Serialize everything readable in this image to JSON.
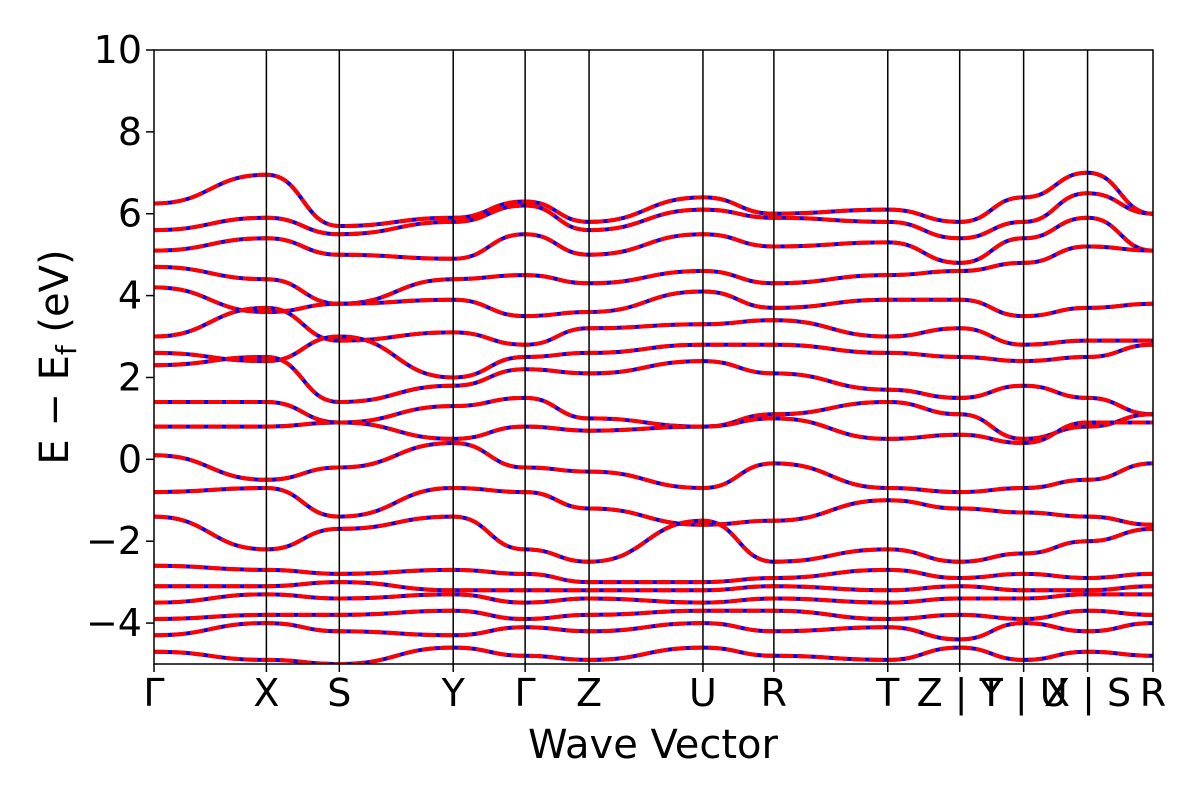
{
  "chart_data": {
    "type": "line",
    "title": "",
    "xlabel": "Wave Vector",
    "ylabel": "E − E",
    "ylabel_sub": "f",
    "ylabel_unit": " (eV)",
    "ylim": [
      -5,
      10
    ],
    "yticks": [
      -4,
      -2,
      0,
      2,
      4,
      6,
      8,
      10
    ],
    "ytick_labels": [
      "−4",
      "−2",
      "0",
      "2",
      "4",
      "6",
      "8",
      "10"
    ],
    "x_range": [
      0,
      1
    ],
    "kpoints": [
      {
        "x": 0.0,
        "label": "Γ"
      },
      {
        "x": 0.1125,
        "label": "X"
      },
      {
        "x": 0.1855,
        "label": "S"
      },
      {
        "x": 0.2995,
        "label": "Y"
      },
      {
        "x": 0.3715,
        "label": "Γ"
      },
      {
        "x": 0.4355,
        "label": "Z"
      },
      {
        "x": 0.5495,
        "label": "U"
      },
      {
        "x": 0.6205,
        "label": "R"
      },
      {
        "x": 0.7345,
        "label": "T"
      },
      {
        "x": 0.8065,
        "label": "Z | Y"
      },
      {
        "x": 0.8705,
        "label": "T | U"
      },
      {
        "x": 0.9345,
        "label": "X | S"
      },
      {
        "x": 1.0,
        "label": "R"
      }
    ],
    "series_styles": [
      {
        "color": "#0000ff",
        "style": "solid"
      },
      {
        "color": "#ff0000",
        "style": "dashed"
      }
    ],
    "grid": false,
    "legend": "none",
    "bands": [
      {
        "x": [
          0.0,
          0.1125,
          0.1855,
          0.2995,
          0.3715,
          0.4355,
          0.5495,
          0.6205,
          0.7345,
          0.8065,
          0.8705,
          0.9345,
          1.0
        ],
        "y": [
          6.25,
          6.95,
          5.7,
          5.9,
          6.3,
          5.8,
          6.4,
          6.0,
          6.1,
          5.8,
          6.4,
          7.0,
          6.0
        ]
      },
      {
        "x": [
          0.0,
          0.1125,
          0.1855,
          0.2995,
          0.3715,
          0.4355,
          0.5495,
          0.6205,
          0.7345,
          0.8065,
          0.8705,
          0.9345,
          1.0
        ],
        "y": [
          5.6,
          5.9,
          5.5,
          5.8,
          6.2,
          5.6,
          6.1,
          5.9,
          5.8,
          5.4,
          5.8,
          6.5,
          6.0
        ]
      },
      {
        "x": [
          0.0,
          0.1125,
          0.1855,
          0.2995,
          0.3715,
          0.4355,
          0.5495,
          0.6205,
          0.7345,
          0.8065,
          0.8705,
          0.9345,
          1.0
        ],
        "y": [
          5.1,
          5.4,
          5.0,
          4.9,
          5.5,
          5.0,
          5.5,
          5.2,
          5.3,
          4.8,
          5.4,
          5.9,
          5.1
        ]
      },
      {
        "x": [
          0.0,
          0.1125,
          0.1855,
          0.2995,
          0.3715,
          0.4355,
          0.5495,
          0.6205,
          0.7345,
          0.8065,
          0.8705,
          0.9345,
          1.0
        ],
        "y": [
          4.7,
          4.4,
          3.8,
          4.4,
          4.5,
          4.3,
          4.6,
          4.3,
          4.5,
          4.6,
          4.8,
          5.2,
          5.1
        ]
      },
      {
        "x": [
          0.0,
          0.1125,
          0.1855,
          0.2995,
          0.3715,
          0.4355,
          0.5495,
          0.6205,
          0.7345,
          0.8065,
          0.8705,
          0.9345,
          1.0
        ],
        "y": [
          4.2,
          3.6,
          3.8,
          3.9,
          3.5,
          3.6,
          4.1,
          3.7,
          3.9,
          3.9,
          3.5,
          3.7,
          3.8
        ]
      },
      {
        "x": [
          0.0,
          0.1125,
          0.1855,
          0.2995,
          0.3715,
          0.4355,
          0.5495,
          0.6205,
          0.7345,
          0.8065,
          0.8705,
          0.9345,
          1.0
        ],
        "y": [
          3.0,
          3.7,
          2.9,
          3.1,
          2.8,
          3.2,
          3.3,
          3.4,
          3.0,
          3.2,
          2.8,
          2.9,
          2.9
        ]
      },
      {
        "x": [
          0.0,
          0.1125,
          0.1855,
          0.2995,
          0.3715,
          0.4355,
          0.5495,
          0.6205,
          0.7345,
          0.8065,
          0.8705,
          0.9345,
          1.0
        ],
        "y": [
          2.6,
          2.4,
          3.0,
          2.0,
          2.5,
          2.6,
          2.8,
          2.8,
          2.6,
          2.5,
          2.4,
          2.5,
          2.8
        ]
      },
      {
        "x": [
          0.0,
          0.1125,
          0.1855,
          0.2995,
          0.3715,
          0.4355,
          0.5495,
          0.6205,
          0.7345,
          0.8065,
          0.8705,
          0.9345,
          1.0
        ],
        "y": [
          2.3,
          2.5,
          1.4,
          1.8,
          2.2,
          2.1,
          2.4,
          2.1,
          1.7,
          1.5,
          1.8,
          1.5,
          1.1
        ]
      },
      {
        "x": [
          0.0,
          0.1125,
          0.1855,
          0.2995,
          0.3715,
          0.4355,
          0.5495,
          0.6205,
          0.7345,
          0.8065,
          0.8705,
          0.9345,
          1.0
        ],
        "y": [
          1.4,
          1.4,
          0.9,
          1.3,
          1.5,
          1.0,
          0.8,
          1.1,
          1.4,
          1.1,
          0.5,
          0.8,
          1.1
        ]
      },
      {
        "x": [
          0.0,
          0.1125,
          0.1855,
          0.2995,
          0.3715,
          0.4355,
          0.5495,
          0.6205,
          0.7345,
          0.8065,
          0.8705,
          0.9345,
          1.0
        ],
        "y": [
          0.8,
          0.8,
          0.9,
          0.5,
          0.8,
          0.7,
          0.8,
          1.0,
          0.5,
          0.6,
          0.4,
          0.9,
          0.9
        ]
      },
      {
        "x": [
          0.0,
          0.1125,
          0.1855,
          0.2995,
          0.3715,
          0.4355,
          0.5495,
          0.6205,
          0.7345,
          0.8065,
          0.8705,
          0.9345,
          1.0
        ],
        "y": [
          0.1,
          -0.5,
          -0.2,
          0.4,
          -0.2,
          -0.3,
          -0.7,
          -0.1,
          -0.7,
          -0.8,
          -0.7,
          -0.5,
          -0.1
        ]
      },
      {
        "x": [
          0.0,
          0.1125,
          0.1855,
          0.2995,
          0.3715,
          0.4355,
          0.5495,
          0.6205,
          0.7345,
          0.8065,
          0.8705,
          0.9345,
          1.0
        ],
        "y": [
          -0.8,
          -0.7,
          -1.4,
          -0.7,
          -0.8,
          -1.2,
          -1.6,
          -1.5,
          -1.0,
          -1.2,
          -1.3,
          -1.4,
          -1.6
        ]
      },
      {
        "x": [
          0.0,
          0.1125,
          0.1855,
          0.2995,
          0.3715,
          0.4355,
          0.5495,
          0.6205,
          0.7345,
          0.8065,
          0.8705,
          0.9345,
          1.0
        ],
        "y": [
          -1.4,
          -2.2,
          -1.7,
          -1.4,
          -2.2,
          -2.5,
          -1.5,
          -2.5,
          -2.2,
          -2.5,
          -2.3,
          -2.0,
          -1.7
        ]
      },
      {
        "x": [
          0.0,
          0.1125,
          0.1855,
          0.2995,
          0.3715,
          0.4355,
          0.5495,
          0.6205,
          0.7345,
          0.8065,
          0.8705,
          0.9345,
          1.0
        ],
        "y": [
          -2.6,
          -2.7,
          -2.8,
          -2.7,
          -2.8,
          -3.0,
          -3.0,
          -2.9,
          -2.7,
          -2.9,
          -2.8,
          -2.9,
          -2.8
        ]
      },
      {
        "x": [
          0.0,
          0.1125,
          0.1855,
          0.2995,
          0.3715,
          0.4355,
          0.5495,
          0.6205,
          0.7345,
          0.8065,
          0.8705,
          0.9345,
          1.0
        ],
        "y": [
          -3.1,
          -3.1,
          -3.0,
          -3.2,
          -3.2,
          -3.2,
          -3.2,
          -3.1,
          -3.2,
          -3.1,
          -3.2,
          -3.2,
          -3.1
        ]
      },
      {
        "x": [
          0.0,
          0.1125,
          0.1855,
          0.2995,
          0.3715,
          0.4355,
          0.5495,
          0.6205,
          0.7345,
          0.8065,
          0.8705,
          0.9345,
          1.0
        ],
        "y": [
          -3.5,
          -3.3,
          -3.4,
          -3.3,
          -3.5,
          -3.4,
          -3.5,
          -3.4,
          -3.5,
          -3.4,
          -3.4,
          -3.3,
          -3.3
        ]
      },
      {
        "x": [
          0.0,
          0.1125,
          0.1855,
          0.2995,
          0.3715,
          0.4355,
          0.5495,
          0.6205,
          0.7345,
          0.8065,
          0.8705,
          0.9345,
          1.0
        ],
        "y": [
          -3.9,
          -3.8,
          -3.8,
          -3.7,
          -3.9,
          -3.8,
          -3.7,
          -3.7,
          -3.9,
          -3.8,
          -3.9,
          -3.7,
          -3.8
        ]
      },
      {
        "x": [
          0.0,
          0.1125,
          0.1855,
          0.2995,
          0.3715,
          0.4355,
          0.5495,
          0.6205,
          0.7345,
          0.8065,
          0.8705,
          0.9345,
          1.0
        ],
        "y": [
          -4.3,
          -4.0,
          -4.2,
          -4.3,
          -4.1,
          -4.2,
          -4.0,
          -4.2,
          -4.1,
          -4.4,
          -4.0,
          -4.2,
          -4.0
        ]
      },
      {
        "x": [
          0.0,
          0.1125,
          0.1855,
          0.2995,
          0.3715,
          0.4355,
          0.5495,
          0.6205,
          0.7345,
          0.8065,
          0.8705,
          0.9345,
          1.0
        ],
        "y": [
          -4.7,
          -4.9,
          -5.0,
          -4.6,
          -4.8,
          -4.9,
          -4.6,
          -4.8,
          -4.9,
          -4.6,
          -4.9,
          -4.7,
          -4.8
        ]
      }
    ]
  }
}
